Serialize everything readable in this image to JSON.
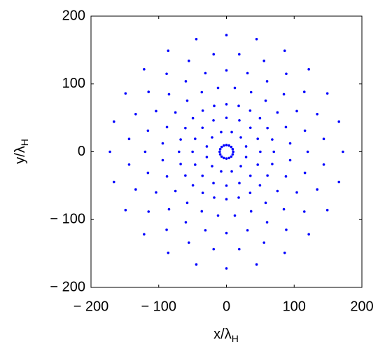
{
  "chart_data": {
    "type": "scatter",
    "color": "#0000ff",
    "grid": false,
    "xlabel": [
      "x/λ",
      "H"
    ],
    "ylabel": [
      "y/λ",
      "H"
    ],
    "xlim": [
      -200,
      200
    ],
    "ylim": [
      -200,
      200
    ],
    "xticks": [
      {
        "value": -200,
        "label": "− 200"
      },
      {
        "value": -100,
        "label": "− 100"
      },
      0,
      100,
      200
    ],
    "yticks": [
      {
        "value": -200,
        "label": "− 200"
      },
      {
        "value": -100,
        "label": "− 100"
      },
      0,
      100,
      200
    ],
    "x": [
      10,
      9.2,
      7.1,
      3.8,
      0,
      -3.8,
      -7.1,
      -9.2,
      -10,
      -9.2,
      -7.1,
      -3.8,
      0,
      3.8,
      7.1,
      9.2,
      29,
      21.2,
      7.8,
      -7.8,
      -21.2,
      -29,
      -29,
      -21.2,
      -7.8,
      7.8,
      21.2,
      29,
      50,
      46.2,
      35.4,
      19.1,
      0,
      -19.1,
      -35.4,
      -46.2,
      -50,
      -46.2,
      -35.4,
      -19.1,
      0,
      19.1,
      35.4,
      46.2,
      70,
      67.6,
      60.6,
      49.5,
      35,
      18.1,
      0,
      -18.1,
      -35,
      -49.5,
      -60.6,
      -67.6,
      -70,
      -67.6,
      -60.6,
      -49.5,
      -35,
      -18.1,
      0,
      18.1,
      35,
      49.5,
      60.6,
      67.6,
      94.1,
      87.8,
      75.3,
      57.9,
      36.4,
      12.4,
      -12.4,
      -36.4,
      -57.9,
      -75.3,
      -87.8,
      -94.1,
      -94.1,
      -87.8,
      -75.3,
      -57.9,
      -36.4,
      -12.4,
      12.4,
      36.4,
      57.9,
      75.3,
      87.8,
      94.1,
      120,
      115.9,
      103.9,
      84.8,
      60,
      31.1,
      0,
      -31.1,
      -60,
      -84.8,
      -103.9,
      -115.9,
      -120,
      -115.9,
      -103.9,
      -84.8,
      -60,
      -31.1,
      0,
      31.1,
      60,
      84.8,
      103.9,
      115.9,
      143.7,
      134,
      115,
      88.3,
      55.5,
      18.9,
      -18.9,
      -55.5,
      -88.3,
      -115,
      -134,
      -143.7,
      -143.7,
      -134,
      -115,
      -88.3,
      -55.5,
      -18.9,
      18.9,
      55.5,
      88.3,
      115,
      134,
      143.7,
      172,
      166.1,
      149,
      121.6,
      86,
      44.5,
      0,
      -44.5,
      -86,
      -121.6,
      -149,
      -166.1,
      -172,
      -166.1,
      -149,
      -121.6,
      -86,
      -44.5,
      0,
      44.5,
      86,
      121.6,
      149,
      166.1
    ],
    "y": [
      0,
      3.8,
      7.1,
      9.2,
      10,
      9.2,
      7.1,
      3.8,
      0,
      -3.8,
      -7.1,
      -9.2,
      -10,
      -9.2,
      -7.1,
      -3.8,
      7.8,
      21.2,
      29,
      29,
      21.2,
      7.8,
      -7.8,
      -21.2,
      -29,
      -29,
      -21.2,
      -7.8,
      0,
      19.1,
      35.4,
      46.2,
      50,
      46.2,
      35.4,
      19.1,
      0,
      -19.1,
      -35.4,
      -46.2,
      -50,
      -46.2,
      -35.4,
      -19.1,
      0,
      18.1,
      35,
      49.5,
      60.6,
      67.6,
      70,
      67.6,
      60.6,
      49.5,
      35,
      18.1,
      0,
      -18.1,
      -35,
      -49.5,
      -60.6,
      -67.6,
      -70,
      -67.6,
      -60.6,
      -49.5,
      -35,
      -18.1,
      12.4,
      36.4,
      57.9,
      75.3,
      87.8,
      94.1,
      94.1,
      87.8,
      75.3,
      57.9,
      36.4,
      12.4,
      -12.4,
      -36.4,
      -57.9,
      -75.3,
      -87.8,
      -94.1,
      -94.1,
      -87.8,
      -75.3,
      -57.9,
      -36.4,
      -12.4,
      0,
      31.1,
      60,
      84.8,
      103.9,
      115.9,
      120,
      115.9,
      103.9,
      84.8,
      60,
      31.1,
      0,
      -31.1,
      -60,
      -84.8,
      -103.9,
      -115.9,
      -120,
      -115.9,
      -103.9,
      -84.8,
      -60,
      -31.1,
      18.9,
      55.5,
      88.3,
      115,
      134,
      143.7,
      143.7,
      134,
      115,
      88.3,
      55.5,
      18.9,
      -18.9,
      -55.5,
      -88.3,
      -115,
      -134,
      -143.7,
      -143.7,
      -134,
      -115,
      -88.3,
      -55.5,
      -18.9,
      0,
      44.5,
      86,
      121.6,
      149,
      166.1,
      172,
      166.1,
      149,
      121.6,
      86,
      44.5,
      0,
      -44.5,
      -86,
      -121.6,
      -149,
      -166.1,
      -172,
      -166.1,
      -149,
      -121.6,
      -86,
      -44.5
    ]
  }
}
